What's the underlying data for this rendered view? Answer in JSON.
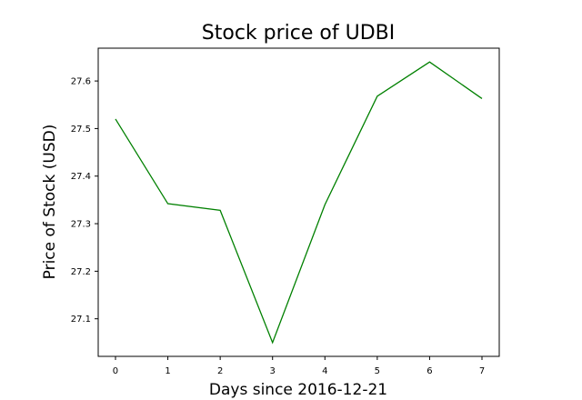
{
  "chart_data": {
    "type": "line",
    "title": "Stock price of UDBI",
    "xlabel": "Days since 2016-12-21",
    "ylabel": "Price of Stock (USD)",
    "x": [
      0,
      1,
      2,
      3,
      4,
      5,
      6,
      7
    ],
    "series": [
      {
        "values": [
          27.52,
          27.342,
          27.328,
          27.05,
          27.34,
          27.568,
          27.64,
          27.563
        ],
        "color": "#008000"
      }
    ],
    "xlim": [
      -0.33,
      7.33
    ],
    "ylim": [
      27.021,
      27.669
    ],
    "x_ticks": [
      "0",
      "1",
      "2",
      "3",
      "4",
      "5",
      "6",
      "7"
    ],
    "y_ticks": [
      "27.1",
      "27.2",
      "27.3",
      "27.4",
      "27.5",
      "27.6"
    ],
    "grid": false
  }
}
